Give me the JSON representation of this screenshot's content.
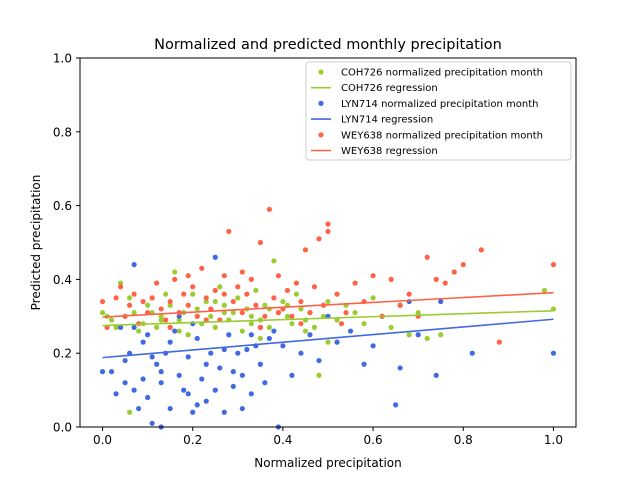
{
  "chart_data": {
    "type": "scatter",
    "title": "Normalized and predicted monthly precipitation",
    "xlabel": "Normalized precipitation",
    "ylabel": "Predicted precipitation",
    "xlim": [
      -0.05,
      1.05
    ],
    "ylim": [
      0.0,
      1.0
    ],
    "xticks": [
      0.0,
      0.2,
      0.4,
      0.6,
      0.8,
      1.0
    ],
    "yticks": [
      0.0,
      0.2,
      0.4,
      0.6,
      0.8,
      1.0
    ],
    "xtick_labels": [
      "0.0",
      "0.2",
      "0.4",
      "0.6",
      "0.8",
      "1.0"
    ],
    "ytick_labels": [
      "0.0",
      "0.2",
      "0.4",
      "0.6",
      "0.8",
      "1.0"
    ],
    "legend_position": "top-right",
    "series": [
      {
        "name": "COH726 normalized precipitation month",
        "regression_name": "COH726 regression",
        "color": "#9acd32",
        "points": [
          [
            0.0,
            0.31
          ],
          [
            0.01,
            0.3
          ],
          [
            0.02,
            0.29
          ],
          [
            0.03,
            0.27
          ],
          [
            0.04,
            0.39
          ],
          [
            0.05,
            0.3
          ],
          [
            0.06,
            0.04
          ],
          [
            0.06,
            0.35
          ],
          [
            0.07,
            0.31
          ],
          [
            0.08,
            0.26
          ],
          [
            0.09,
            0.28
          ],
          [
            0.1,
            0.33
          ],
          [
            0.11,
            0.31
          ],
          [
            0.12,
            0.27
          ],
          [
            0.13,
            0.3
          ],
          [
            0.14,
            0.36
          ],
          [
            0.15,
            0.33
          ],
          [
            0.16,
            0.42
          ],
          [
            0.17,
            0.29
          ],
          [
            0.18,
            0.31
          ],
          [
            0.19,
            0.25
          ],
          [
            0.2,
            0.36
          ],
          [
            0.21,
            0.32
          ],
          [
            0.22,
            0.28
          ],
          [
            0.23,
            0.34
          ],
          [
            0.24,
            0.3
          ],
          [
            0.25,
            0.27
          ],
          [
            0.26,
            0.38
          ],
          [
            0.27,
            0.33
          ],
          [
            0.28,
            0.29
          ],
          [
            0.29,
            0.31
          ],
          [
            0.3,
            0.35
          ],
          [
            0.31,
            0.26
          ],
          [
            0.32,
            0.32
          ],
          [
            0.33,
            0.3
          ],
          [
            0.34,
            0.37
          ],
          [
            0.35,
            0.29
          ],
          [
            0.36,
            0.33
          ],
          [
            0.37,
            0.27
          ],
          [
            0.38,
            0.45
          ],
          [
            0.39,
            0.31
          ],
          [
            0.4,
            0.34
          ],
          [
            0.41,
            0.3
          ],
          [
            0.42,
            0.28
          ],
          [
            0.43,
            0.36
          ],
          [
            0.44,
            0.32
          ],
          [
            0.45,
            0.29
          ],
          [
            0.46,
            0.31
          ],
          [
            0.47,
            0.27
          ],
          [
            0.48,
            0.14
          ],
          [
            0.49,
            0.3
          ],
          [
            0.5,
            0.34
          ],
          [
            0.52,
            0.29
          ],
          [
            0.54,
            0.33
          ],
          [
            0.56,
            0.31
          ],
          [
            0.58,
            0.28
          ],
          [
            0.6,
            0.35
          ],
          [
            0.62,
            0.3
          ],
          [
            0.64,
            0.27
          ],
          [
            0.66,
            0.33
          ],
          [
            0.68,
            0.25
          ],
          [
            0.7,
            0.31
          ],
          [
            0.72,
            0.24
          ],
          [
            0.75,
            0.25
          ],
          [
            0.98,
            0.37
          ],
          [
            1.0,
            0.32
          ],
          [
            0.13,
            0.29
          ],
          [
            0.17,
            0.26
          ],
          [
            0.21,
            0.3
          ],
          [
            0.27,
            0.31
          ],
          [
            0.33,
            0.28
          ],
          [
            0.37,
            0.32
          ],
          [
            0.41,
            0.33
          ],
          [
            0.45,
            0.26
          ],
          [
            0.5,
            0.23
          ],
          [
            0.25,
            0.34
          ],
          [
            0.15,
            0.27
          ],
          [
            0.35,
            0.24
          ]
        ],
        "regression": [
          [
            0.0,
            0.275
          ],
          [
            1.0,
            0.315
          ]
        ]
      },
      {
        "name": "LYN714 normalized precipitation month",
        "regression_name": "LYN714 regression",
        "color": "#4169e1",
        "points": [
          [
            0.0,
            0.15
          ],
          [
            0.02,
            0.15
          ],
          [
            0.03,
            0.09
          ],
          [
            0.04,
            0.27
          ],
          [
            0.05,
            0.12
          ],
          [
            0.06,
            0.2
          ],
          [
            0.07,
            0.1
          ],
          [
            0.07,
            0.27
          ],
          [
            0.07,
            0.44
          ],
          [
            0.08,
            0.05
          ],
          [
            0.09,
            0.23
          ],
          [
            0.1,
            0.08
          ],
          [
            0.11,
            0.01
          ],
          [
            0.12,
            0.17
          ],
          [
            0.13,
            0.12
          ],
          [
            0.13,
            0.0
          ],
          [
            0.14,
            0.2
          ],
          [
            0.15,
            0.05
          ],
          [
            0.16,
            0.26
          ],
          [
            0.17,
            0.14
          ],
          [
            0.18,
            0.1
          ],
          [
            0.19,
            0.19
          ],
          [
            0.2,
            0.04
          ],
          [
            0.21,
            0.24
          ],
          [
            0.22,
            0.13
          ],
          [
            0.23,
            0.07
          ],
          [
            0.24,
            0.2
          ],
          [
            0.25,
            0.46
          ],
          [
            0.26,
            0.16
          ],
          [
            0.27,
            0.04
          ],
          [
            0.28,
            0.25
          ],
          [
            0.29,
            0.11
          ],
          [
            0.3,
            0.2
          ],
          [
            0.31,
            0.14
          ],
          [
            0.32,
            0.21
          ],
          [
            0.33,
            0.09
          ],
          [
            0.34,
            0.22
          ],
          [
            0.35,
            0.17
          ],
          [
            0.36,
            0.12
          ],
          [
            0.37,
            0.24
          ],
          [
            0.38,
            0.26
          ],
          [
            0.39,
            0.0
          ],
          [
            0.4,
            0.22
          ],
          [
            0.42,
            0.14
          ],
          [
            0.44,
            0.2
          ],
          [
            0.46,
            0.25
          ],
          [
            0.48,
            0.18
          ],
          [
            0.5,
            0.3
          ],
          [
            0.52,
            0.23
          ],
          [
            0.55,
            0.26
          ],
          [
            0.58,
            0.17
          ],
          [
            0.6,
            0.22
          ],
          [
            0.62,
            0.3
          ],
          [
            0.65,
            0.06
          ],
          [
            0.66,
            0.16
          ],
          [
            0.68,
            0.34
          ],
          [
            0.7,
            0.25
          ],
          [
            0.74,
            0.14
          ],
          [
            0.75,
            0.34
          ],
          [
            0.82,
            0.2
          ],
          [
            1.0,
            0.2
          ],
          [
            0.11,
            0.19
          ],
          [
            0.15,
            0.23
          ],
          [
            0.19,
            0.09
          ],
          [
            0.23,
            0.17
          ],
          [
            0.27,
            0.21
          ],
          [
            0.31,
            0.05
          ],
          [
            0.35,
            0.27
          ],
          [
            0.05,
            0.18
          ],
          [
            0.09,
            0.13
          ],
          [
            0.17,
            0.3
          ],
          [
            0.21,
            0.06
          ],
          [
            0.29,
            0.15
          ],
          [
            0.33,
            0.25
          ],
          [
            0.25,
            0.1
          ],
          [
            0.13,
            0.15
          ],
          [
            0.2,
            0.28
          ],
          [
            0.1,
            0.25
          ]
        ],
        "regression": [
          [
            0.0,
            0.188
          ],
          [
            1.0,
            0.292
          ]
        ]
      },
      {
        "name": "WEY638 normalized precipitation month",
        "regression_name": "WEY638 regression",
        "color": "#ff6347",
        "points": [
          [
            0.0,
            0.34
          ],
          [
            0.01,
            0.27
          ],
          [
            0.03,
            0.35
          ],
          [
            0.04,
            0.38
          ],
          [
            0.05,
            0.3
          ],
          [
            0.06,
            0.33
          ],
          [
            0.07,
            0.36
          ],
          [
            0.08,
            0.28
          ],
          [
            0.09,
            0.34
          ],
          [
            0.1,
            0.31
          ],
          [
            0.11,
            0.35
          ],
          [
            0.12,
            0.39
          ],
          [
            0.13,
            0.32
          ],
          [
            0.14,
            0.29
          ],
          [
            0.15,
            0.34
          ],
          [
            0.16,
            0.4
          ],
          [
            0.17,
            0.31
          ],
          [
            0.18,
            0.36
          ],
          [
            0.19,
            0.33
          ],
          [
            0.2,
            0.38
          ],
          [
            0.21,
            0.3
          ],
          [
            0.22,
            0.43
          ],
          [
            0.23,
            0.35
          ],
          [
            0.24,
            0.32
          ],
          [
            0.25,
            0.37
          ],
          [
            0.26,
            0.29
          ],
          [
            0.27,
            0.41
          ],
          [
            0.28,
            0.53
          ],
          [
            0.29,
            0.34
          ],
          [
            0.3,
            0.38
          ],
          [
            0.31,
            0.31
          ],
          [
            0.32,
            0.36
          ],
          [
            0.33,
            0.4
          ],
          [
            0.34,
            0.33
          ],
          [
            0.35,
            0.5
          ],
          [
            0.36,
            0.3
          ],
          [
            0.37,
            0.59
          ],
          [
            0.38,
            0.35
          ],
          [
            0.39,
            0.41
          ],
          [
            0.4,
            0.32
          ],
          [
            0.41,
            0.37
          ],
          [
            0.42,
            0.3
          ],
          [
            0.43,
            0.39
          ],
          [
            0.44,
            0.34
          ],
          [
            0.45,
            0.48
          ],
          [
            0.46,
            0.31
          ],
          [
            0.47,
            0.38
          ],
          [
            0.48,
            0.51
          ],
          [
            0.49,
            0.33
          ],
          [
            0.5,
            0.55
          ],
          [
            0.5,
            0.53
          ],
          [
            0.52,
            0.36
          ],
          [
            0.54,
            0.31
          ],
          [
            0.56,
            0.39
          ],
          [
            0.58,
            0.34
          ],
          [
            0.6,
            0.41
          ],
          [
            0.62,
            0.3
          ],
          [
            0.64,
            0.4
          ],
          [
            0.66,
            0.33
          ],
          [
            0.68,
            0.36
          ],
          [
            0.7,
            0.3
          ],
          [
            0.72,
            0.46
          ],
          [
            0.74,
            0.4
          ],
          [
            0.76,
            0.39
          ],
          [
            0.78,
            0.42
          ],
          [
            0.8,
            0.44
          ],
          [
            0.84,
            0.48
          ],
          [
            0.88,
            0.23
          ],
          [
            1.0,
            0.44
          ],
          [
            0.15,
            0.27
          ],
          [
            0.19,
            0.41
          ],
          [
            0.23,
            0.29
          ],
          [
            0.27,
            0.36
          ],
          [
            0.31,
            0.42
          ],
          [
            0.35,
            0.27
          ],
          [
            0.39,
            0.31
          ],
          [
            0.44,
            0.28
          ],
          [
            0.53,
            0.28
          ]
        ],
        "regression": [
          [
            0.0,
            0.298
          ],
          [
            1.0,
            0.364
          ]
        ]
      }
    ]
  }
}
